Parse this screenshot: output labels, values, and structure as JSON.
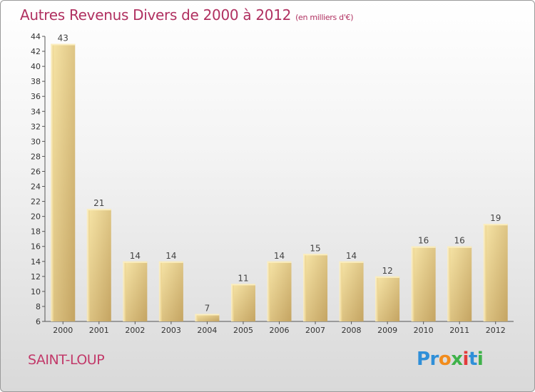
{
  "header": {
    "title": "Autres Revenus Divers de 2000 à 2012",
    "subtitle": "(en milliers d'€)"
  },
  "footer": {
    "commune": "SAINT-LOUP",
    "logo_text": "Proxiti"
  },
  "colors": {
    "title": "#b03060",
    "bar_light": "#f6e2a2",
    "bar_dark": "#c8a865",
    "axis": "#444444"
  },
  "chart_data": {
    "type": "bar",
    "title": "Autres Revenus Divers de 2000 à 2012",
    "subtitle": "(en milliers d'€)",
    "xlabel": "",
    "ylabel": "",
    "categories": [
      "2000",
      "2001",
      "2002",
      "2003",
      "2004",
      "2005",
      "2006",
      "2007",
      "2008",
      "2009",
      "2010",
      "2011",
      "2012"
    ],
    "values": [
      43,
      21,
      14,
      14,
      7,
      11,
      14,
      15,
      14,
      12,
      16,
      16,
      19
    ],
    "ylim": [
      6,
      44
    ],
    "yticks": [
      6,
      8,
      10,
      12,
      14,
      16,
      18,
      20,
      22,
      24,
      26,
      28,
      30,
      32,
      34,
      36,
      38,
      40,
      42,
      44
    ],
    "grid": false,
    "legend": "none"
  }
}
